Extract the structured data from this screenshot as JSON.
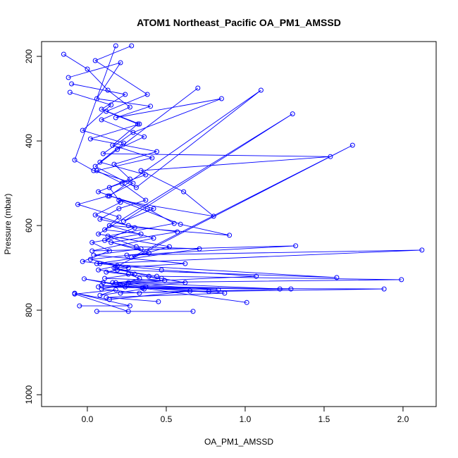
{
  "chart_data": {
    "type": "line",
    "title": "ATOM1 Northeast_Pacific OA_PM1_AMSSD",
    "xlabel": "OA_PM1_AMSSD",
    "ylabel": "Pressure (mbar)",
    "xlim": [
      -0.29,
      2.21
    ],
    "ylim": [
      1028,
      165
    ],
    "y_reversed": true,
    "x_ticks": [
      "0.0",
      "0.5",
      "1.0",
      "1.5",
      "2.0"
    ],
    "x_tick_values": [
      0,
      0.5,
      1.0,
      1.5,
      2.0
    ],
    "y_ticks": [
      "200",
      "400",
      "600",
      "800",
      "1000"
    ],
    "y_tick_values": [
      200,
      400,
      600,
      800,
      1000
    ],
    "grid": false,
    "color": "#0000ff",
    "series": [
      {
        "x": [
          0.28,
          0.05,
          0.38,
          0.12,
          0.32,
          0.16,
          0.41,
          0.06,
          0.22,
          0.37,
          0.2,
          0.08,
          0.26,
          0.57,
          0.15,
          0.34,
          0.04,
          0.62,
          0.18,
          0.3,
          0.11,
          0.49,
          0.25,
          0.09,
          0.33
        ],
        "y": [
          175,
          210,
          290,
          330,
          360,
          410,
          440,
          470,
          500,
          540,
          560,
          585,
          600,
          615,
          640,
          655,
          670,
          690,
          700,
          715,
          725,
          730,
          740,
          750,
          760
        ]
      },
      {
        "x": [
          -0.15,
          0.0,
          0.13,
          0.27,
          0.09,
          0.36,
          0.19,
          0.7,
          0.05,
          0.31,
          1.1,
          0.14,
          0.42,
          0.23,
          1.3,
          0.07,
          0.52,
          0.28,
          1.68,
          0.17,
          0.39,
          0.62,
          0.24,
          0.87,
          0.12,
          0.45
        ],
        "y": [
          195,
          230,
          280,
          320,
          350,
          390,
          420,
          275,
          460,
          510,
          280,
          530,
          560,
          590,
          336,
          620,
          650,
          675,
          410,
          700,
          720,
          735,
          745,
          760,
          770,
          780
        ]
      },
      {
        "x": [
          -0.12,
          0.21,
          0.06,
          0.4,
          0.18,
          0.85,
          0.29,
          0.1,
          1.54,
          0.34,
          0.61,
          0.8,
          0.2,
          0.59,
          0.9,
          0.14,
          0.42,
          0.03,
          1.32,
          0.25,
          2.12,
          0.08,
          0.47,
          1.07,
          0.16,
          0.37
        ],
        "y": [
          250,
          215,
          300,
          318,
          345,
          300,
          380,
          430,
          437,
          470,
          520,
          578,
          540,
          597,
          623,
          600,
          630,
          660,
          648,
          670,
          658,
          690,
          705,
          720,
          735,
          745
        ]
      },
      {
        "x": [
          -0.1,
          0.24,
          0.09,
          0.33,
          0.02,
          0.44,
          0.17,
          0.27,
          0.07,
          0.38,
          0.55,
          0.13,
          0.31,
          0.71,
          0.06,
          1.58,
          0.19,
          0.44,
          1.99,
          0.26,
          1.22,
          0.09,
          0.77,
          1.88,
          0.35,
          1.01
        ],
        "y": [
          265,
          290,
          325,
          360,
          395,
          425,
          455,
          490,
          520,
          560,
          595,
          625,
          650,
          655,
          690,
          723,
          705,
          720,
          728,
          735,
          750,
          742,
          756,
          750,
          748,
          782
        ]
      },
      {
        "x": [
          -0.11,
          0.15,
          -0.03,
          0.23,
          0.08,
          0.37,
          0.14,
          0.21,
          0.05,
          0.3,
          0.11,
          0.39,
          0.02,
          0.26,
          0.12,
          0.47,
          0.18,
          0.83,
          0.07,
          1.29,
          0.21,
          0.65,
          0.14,
          -0.08,
          0.27,
          -0.05
        ],
        "y": [
          285,
          315,
          375,
          405,
          450,
          480,
          510,
          545,
          575,
          605,
          635,
          665,
          680,
          700,
          710,
          725,
          735,
          752,
          745,
          750,
          760,
          755,
          775,
          760,
          790,
          790
        ]
      },
      {
        "x": [
          0.18,
          -0.08,
          0.04,
          0.29,
          0.13,
          -0.06,
          0.2,
          0.11,
          0.34,
          0.03,
          0.14,
          -0.03,
          0.19,
          0.07,
          0.26,
          0.33,
          0.21,
          -0.02,
          0.1,
          0.36,
          0.08,
          0.18,
          -0.08,
          0.26,
          0.06,
          0.67
        ],
        "y": [
          175,
          445,
          470,
          500,
          530,
          550,
          580,
          610,
          620,
          640,
          660,
          685,
          695,
          705,
          715,
          725,
          740,
          726,
          735,
          750,
          765,
          752,
          762,
          803,
          803,
          803
        ]
      }
    ]
  }
}
